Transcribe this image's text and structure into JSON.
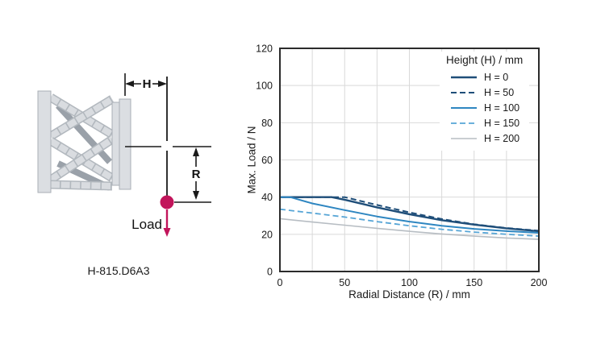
{
  "diagram": {
    "model_label": "H-815.D6A3",
    "height_dim_label": "H",
    "radius_dim_label": "R",
    "load_label": "Load",
    "load_color": "#c2155b",
    "plate_fill": "#dbdee2",
    "plate_stroke": "#a9afb6",
    "strut_light": "#d9dce0",
    "strut_edge": "#b2b8be",
    "strut_dark": "#9aa1a9",
    "dim_color": "#1a1a1a"
  },
  "chart_data": {
    "type": "line",
    "title": "",
    "xlabel": "Radial Distance (R) / mm",
    "ylabel": "Max. Load / N",
    "xlim": [
      0,
      200
    ],
    "ylim": [
      0,
      120
    ],
    "x_ticks": [
      0,
      50,
      100,
      150,
      200
    ],
    "y_ticks": [
      0,
      20,
      40,
      60,
      80,
      100,
      120
    ],
    "x_grid_step": 25,
    "y_grid_step": 20,
    "grid": true,
    "grid_color": "#d9d9d9",
    "frame_color": "#2b2b2b",
    "legend_title": "Height (H) / mm",
    "legend_position": "top-right",
    "series": [
      {
        "name": "H = 0",
        "color": "#1f4e79",
        "dash": false,
        "width": 2.4,
        "points": [
          [
            0,
            40
          ],
          [
            40,
            40
          ],
          [
            50,
            38.6
          ],
          [
            75,
            34.5
          ],
          [
            100,
            30.8
          ],
          [
            125,
            27.6
          ],
          [
            150,
            25.2
          ],
          [
            175,
            23.2
          ],
          [
            200,
            21.6
          ]
        ]
      },
      {
        "name": "H = 50",
        "color": "#1f4e79",
        "dash": true,
        "width": 2.0,
        "points": [
          [
            0,
            40
          ],
          [
            40,
            40
          ],
          [
            50,
            40
          ],
          [
            75,
            35.8
          ],
          [
            100,
            31.8
          ],
          [
            125,
            28.2
          ],
          [
            150,
            25.4
          ],
          [
            175,
            23.4
          ],
          [
            200,
            21.9
          ]
        ]
      },
      {
        "name": "H = 100",
        "color": "#2e86c1",
        "dash": false,
        "width": 2.0,
        "points": [
          [
            0,
            40
          ],
          [
            8,
            40
          ],
          [
            25,
            36.6
          ],
          [
            50,
            33
          ],
          [
            75,
            29.6
          ],
          [
            100,
            26.8
          ],
          [
            125,
            24.6
          ],
          [
            150,
            22.9
          ],
          [
            175,
            21.7
          ],
          [
            200,
            20.8
          ]
        ]
      },
      {
        "name": "H = 150",
        "color": "#56a5d6",
        "dash": true,
        "width": 1.8,
        "points": [
          [
            0,
            33.5
          ],
          [
            25,
            31.4
          ],
          [
            50,
            29.3
          ],
          [
            75,
            26.8
          ],
          [
            100,
            24.6
          ],
          [
            125,
            22.7
          ],
          [
            150,
            21.2
          ],
          [
            175,
            20
          ],
          [
            200,
            19
          ]
        ]
      },
      {
        "name": "H = 200",
        "color": "#b7bdc3",
        "dash": false,
        "width": 1.6,
        "points": [
          [
            0,
            28.4
          ],
          [
            25,
            26.6
          ],
          [
            50,
            24.9
          ],
          [
            75,
            23.2
          ],
          [
            100,
            21.6
          ],
          [
            125,
            20.2
          ],
          [
            150,
            19
          ],
          [
            175,
            18
          ],
          [
            200,
            17.3
          ]
        ]
      }
    ]
  }
}
